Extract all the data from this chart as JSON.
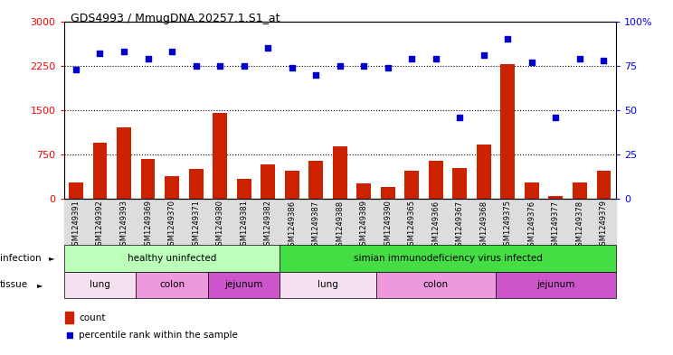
{
  "title": "GDS4993 / MmugDNA.20257.1.S1_at",
  "samples": [
    "GSM1249391",
    "GSM1249392",
    "GSM1249393",
    "GSM1249369",
    "GSM1249370",
    "GSM1249371",
    "GSM1249380",
    "GSM1249381",
    "GSM1249382",
    "GSM1249386",
    "GSM1249387",
    "GSM1249388",
    "GSM1249389",
    "GSM1249390",
    "GSM1249365",
    "GSM1249366",
    "GSM1249367",
    "GSM1249368",
    "GSM1249375",
    "GSM1249376",
    "GSM1249377",
    "GSM1249378",
    "GSM1249379"
  ],
  "counts": [
    280,
    950,
    1200,
    680,
    380,
    500,
    1450,
    340,
    580,
    480,
    650,
    880,
    260,
    200,
    480,
    650,
    520,
    920,
    2270,
    270,
    50,
    270,
    480
  ],
  "percentiles": [
    73,
    82,
    83,
    79,
    83,
    75,
    75,
    75,
    85,
    74,
    70,
    75,
    75,
    74,
    79,
    79,
    46,
    81,
    90,
    77,
    46,
    79,
    78
  ],
  "ylim_left": [
    0,
    3000
  ],
  "ylim_right": [
    0,
    100
  ],
  "yticks_left": [
    0,
    750,
    1500,
    2250,
    3000
  ],
  "yticks_right": [
    0,
    25,
    50,
    75,
    100
  ],
  "bar_color": "#cc2200",
  "dot_color": "#0000cc",
  "infection_groups": [
    {
      "label": "healthy uninfected",
      "start": 0,
      "end": 8,
      "color": "#bbffbb"
    },
    {
      "label": "simian immunodeficiency virus infected",
      "start": 9,
      "end": 22,
      "color": "#44dd44"
    }
  ],
  "tissue_colors": {
    "lung": "#f5e0f0",
    "colon": "#ee99dd",
    "jejunum": "#cc55cc"
  },
  "tissue_groups": [
    {
      "label": "lung",
      "start": 0,
      "end": 2
    },
    {
      "label": "colon",
      "start": 3,
      "end": 5
    },
    {
      "label": "jejunum",
      "start": 6,
      "end": 8
    },
    {
      "label": "lung",
      "start": 9,
      "end": 12
    },
    {
      "label": "colon",
      "start": 13,
      "end": 17
    },
    {
      "label": "jejunum",
      "start": 18,
      "end": 22
    }
  ],
  "legend_count_label": "count",
  "legend_percentile_label": "percentile rank within the sample",
  "infection_label": "infection",
  "tissue_label": "tissue",
  "bg_color": "#ffffff",
  "plot_bg": "#ffffff",
  "xtick_bg": "#dddddd"
}
